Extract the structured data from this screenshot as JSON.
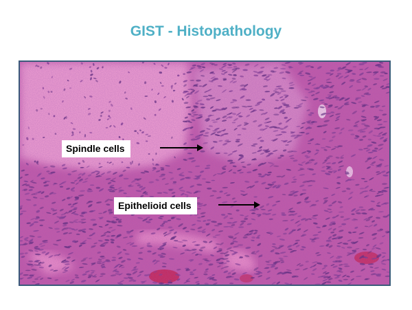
{
  "slide": {
    "title": "GIST - Histopathology"
  },
  "image": {
    "subject": "H&E stained micrograph",
    "colors": {
      "stroma_pink": "#e77fc0",
      "light_pink": "#ee9fd0",
      "cell_purple": "#9c4aa3",
      "nuclei_dark": "#5a2a7a",
      "rbc_red": "#c8204a",
      "frame": "#3a5a7a"
    }
  },
  "annotations": [
    {
      "label": "Spindle cells"
    },
    {
      "label": "Epithelioid cells"
    }
  ]
}
